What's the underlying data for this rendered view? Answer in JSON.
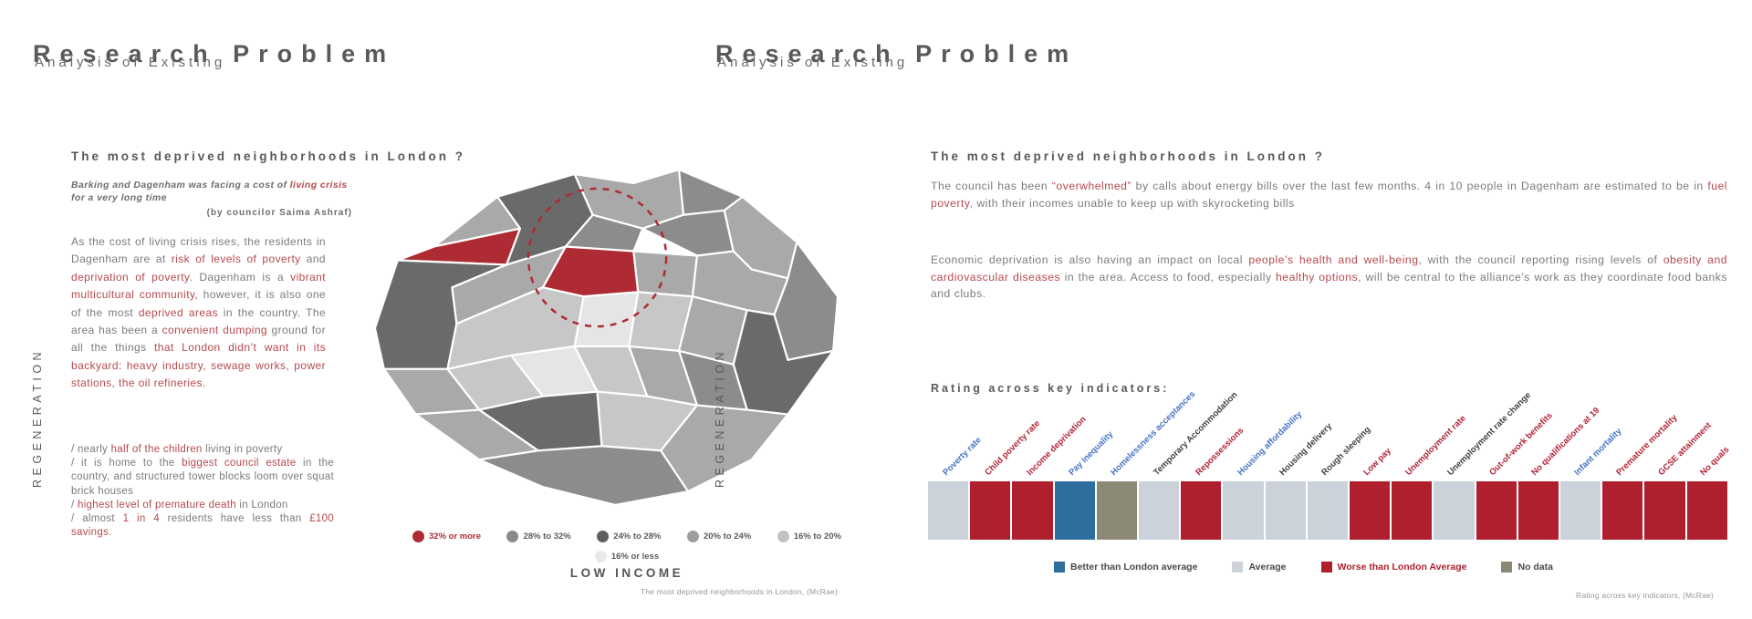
{
  "left": {
    "title": "Research Problem",
    "subtitle": "Analysis of Existing",
    "vertical_label": "REGENERATION",
    "heading": "The most deprived neighborhoods in London ?",
    "quote_segments": [
      {
        "t": "Barking and Dagenham was facing a cost of "
      },
      {
        "t": "living crisis",
        "c": "r"
      },
      {
        "t": " for a very long time"
      }
    ],
    "quote_attribution": "(by councilor Saima Ashraf)",
    "paragraph_segments": [
      {
        "t": "As the cost of living crisis rises, the residents in Dagenham are at "
      },
      {
        "t": "risk of levels of poverty",
        "c": "r"
      },
      {
        "t": " and "
      },
      {
        "t": "deprivation of poverty",
        "c": "r"
      },
      {
        "t": ". Dagenham is a "
      },
      {
        "t": "vibrant multicultural community,",
        "c": "r"
      },
      {
        "t": " however, it is also one of the most "
      },
      {
        "t": "deprived areas",
        "c": "r"
      },
      {
        "t": " in the country. The area has been a "
      },
      {
        "t": "convenient dumping",
        "c": "r"
      },
      {
        "t": " ground for all the things "
      },
      {
        "t": "that London didn’t want in its backyard: heavy industry, sewage works, power stations, the oil refineries.",
        "c": "r"
      }
    ],
    "list_items": [
      [
        {
          "t": "/ nearly "
        },
        {
          "t": "half of the children",
          "c": "r"
        },
        {
          "t": " living in poverty"
        }
      ],
      [
        {
          "t": "/ it is home to the "
        },
        {
          "t": "biggest council estate",
          "c": "r"
        },
        {
          "t": " in the country, and structured tower blocks loom over squat brick houses"
        }
      ],
      [
        {
          "t": "/ "
        },
        {
          "t": "highest level of premature death",
          "c": "r"
        },
        {
          "t": " in London"
        }
      ],
      [
        {
          "t": "/ almost "
        },
        {
          "t": "1 in 4",
          "c": "r"
        },
        {
          "t": " residents have less than "
        },
        {
          "t": "£100 savings.",
          "c": "r"
        }
      ]
    ],
    "map": {
      "title": "LOW INCOME",
      "source": "The most deprived neighborhoods in London, (McRae)",
      "legend_row1": [
        {
          "color": "#ae2b33",
          "label": "32% or more",
          "emph": true
        },
        {
          "color": "#8a8a8a",
          "label": "28% to 32%"
        },
        {
          "color": "#5f5f5f",
          "label": "24% to 28%"
        },
        {
          "color": "#9e9e9e",
          "label": "20% to 24%"
        },
        {
          "color": "#c2c2c2",
          "label": "16% to 20%"
        }
      ],
      "legend_row2": [
        {
          "color": "#e9e9e9",
          "label": "16% or less"
        }
      ],
      "palette": {
        "c1": "#ae2b33",
        "c2": "#6a6a6a",
        "c3": "#8c8c8c",
        "c4": "#a9a9a9",
        "c5": "#c7c7c7",
        "c6": "#e5e5e5"
      },
      "highlight_circle_color": "#b02a33"
    }
  },
  "right": {
    "title": "Research Problem",
    "subtitle": "Analysis of Existing",
    "vertical_label": "REGENERATION",
    "heading": "The most deprived neighborhoods in London ?",
    "paragraph1_segments": [
      {
        "t": "The council has been "
      },
      {
        "t": "“overwhelmed”",
        "c": "r"
      },
      {
        "t": " by calls about energy bills over the last few months. 4 in 10 people in Dagenham are estimated to be in "
      },
      {
        "t": "fuel poverty",
        "c": "r"
      },
      {
        "t": ", with their incomes unable to keep up with skyrocketing bills"
      }
    ],
    "paragraph2_segments": [
      {
        "t": "Economic deprivation is also having an impact on local "
      },
      {
        "t": "people’s health and well-being",
        "c": "r"
      },
      {
        "t": ", with the council reporting rising levels of "
      },
      {
        "t": "obesity and cardiovascular diseases",
        "c": "r"
      },
      {
        "t": " in the area. Access to food, especially "
      },
      {
        "t": "healthy options",
        "c": "r"
      },
      {
        "t": ", will be central to the alliance’s work as they coordinate food banks and clubs."
      }
    ],
    "rating_heading": "Rating across key indicators:",
    "indicators": [
      {
        "label": "Poverty rate",
        "label_color": "blue",
        "status": "average"
      },
      {
        "label": "Child poverty rate",
        "label_color": "red",
        "status": "worse"
      },
      {
        "label": "Income deprivation",
        "label_color": "red",
        "status": "worse"
      },
      {
        "label": "Pay inequality",
        "label_color": "blue",
        "status": "better"
      },
      {
        "label": "Homelessness acceptances",
        "label_color": "blue",
        "status": "nodata"
      },
      {
        "label": "Temporary Accommodation",
        "label_color": "dark",
        "status": "average"
      },
      {
        "label": "Repossessions",
        "label_color": "red",
        "status": "worse"
      },
      {
        "label": "Housing affordability",
        "label_color": "blue",
        "status": "average"
      },
      {
        "label": "Housing delivery",
        "label_color": "dark",
        "status": "average"
      },
      {
        "label": "Rough sleeping",
        "label_color": "dark",
        "status": "average"
      },
      {
        "label": "Low pay",
        "label_color": "red",
        "status": "worse"
      },
      {
        "label": "Unemployment rate",
        "label_color": "red",
        "status": "worse"
      },
      {
        "label": "Unemployment rate change",
        "label_color": "dark",
        "status": "average"
      },
      {
        "label": "Out-of-work benefits",
        "label_color": "red",
        "status": "worse"
      },
      {
        "label": "No qualifications at 19",
        "label_color": "red",
        "status": "worse"
      },
      {
        "label": "Infant mortality",
        "label_color": "blue",
        "status": "average"
      },
      {
        "label": "Premature mortality",
        "label_color": "red",
        "status": "worse"
      },
      {
        "label": "GCSE attainment",
        "label_color": "red",
        "status": "worse"
      },
      {
        "label": "No quals",
        "label_color": "red",
        "status": "worse"
      }
    ],
    "status_colors": {
      "better": "#2e6e9e",
      "average": "#ccd2da",
      "worse": "#b01f2e",
      "nodata": "#8b8974"
    },
    "label_colors": {
      "blue": "#4472c4",
      "red": "#b02334",
      "dark": "#404042"
    },
    "legend": [
      {
        "key": "better",
        "label": "Better than London average"
      },
      {
        "key": "average",
        "label": "Average"
      },
      {
        "key": "worse",
        "label": "Worse than London Average",
        "emph": true
      },
      {
        "key": "nodata",
        "label": "No data"
      }
    ],
    "source": "Rating across key indicators, (McRae)"
  },
  "chart_data": [
    {
      "type": "heatmap",
      "title": "Rating across key indicators:",
      "categories": [
        "Poverty rate",
        "Child poverty rate",
        "Income deprivation",
        "Pay inequality",
        "Homelessness acceptances",
        "Temporary Accommodation",
        "Repossessions",
        "Housing affordability",
        "Housing delivery",
        "Rough sleeping",
        "Low pay",
        "Unemployment rate",
        "Unemployment rate change",
        "Out-of-work benefits",
        "No qualifications at 19",
        "Infant mortality",
        "Premature mortality",
        "GCSE attainment",
        "No quals"
      ],
      "values": [
        "Average",
        "Worse than London Average",
        "Worse than London Average",
        "Better than London average",
        "No data",
        "Average",
        "Worse than London Average",
        "Average",
        "Average",
        "Average",
        "Worse than London Average",
        "Worse than London Average",
        "Average",
        "Worse than London Average",
        "Worse than London Average",
        "Average",
        "Worse than London Average",
        "Worse than London Average",
        "Worse than London Average"
      ],
      "legend": [
        "Better than London average",
        "Average",
        "Worse than London Average",
        "No data"
      ],
      "legend_position": "bottom",
      "source": "Rating across key indicators, (McRae)"
    },
    {
      "type": "choropleth",
      "title": "LOW INCOME",
      "bins": [
        "32% or more",
        "28% to 32%",
        "24% to 28%",
        "20% to 24%",
        "16% to 20%",
        "16% or less"
      ],
      "annotation": "Red dashed circle highlights deprived borough area (Barking and Dagenham); two boroughs shaded red (32% or more low income)",
      "source": "The most deprived neighborhoods in London, (McRae)"
    }
  ]
}
